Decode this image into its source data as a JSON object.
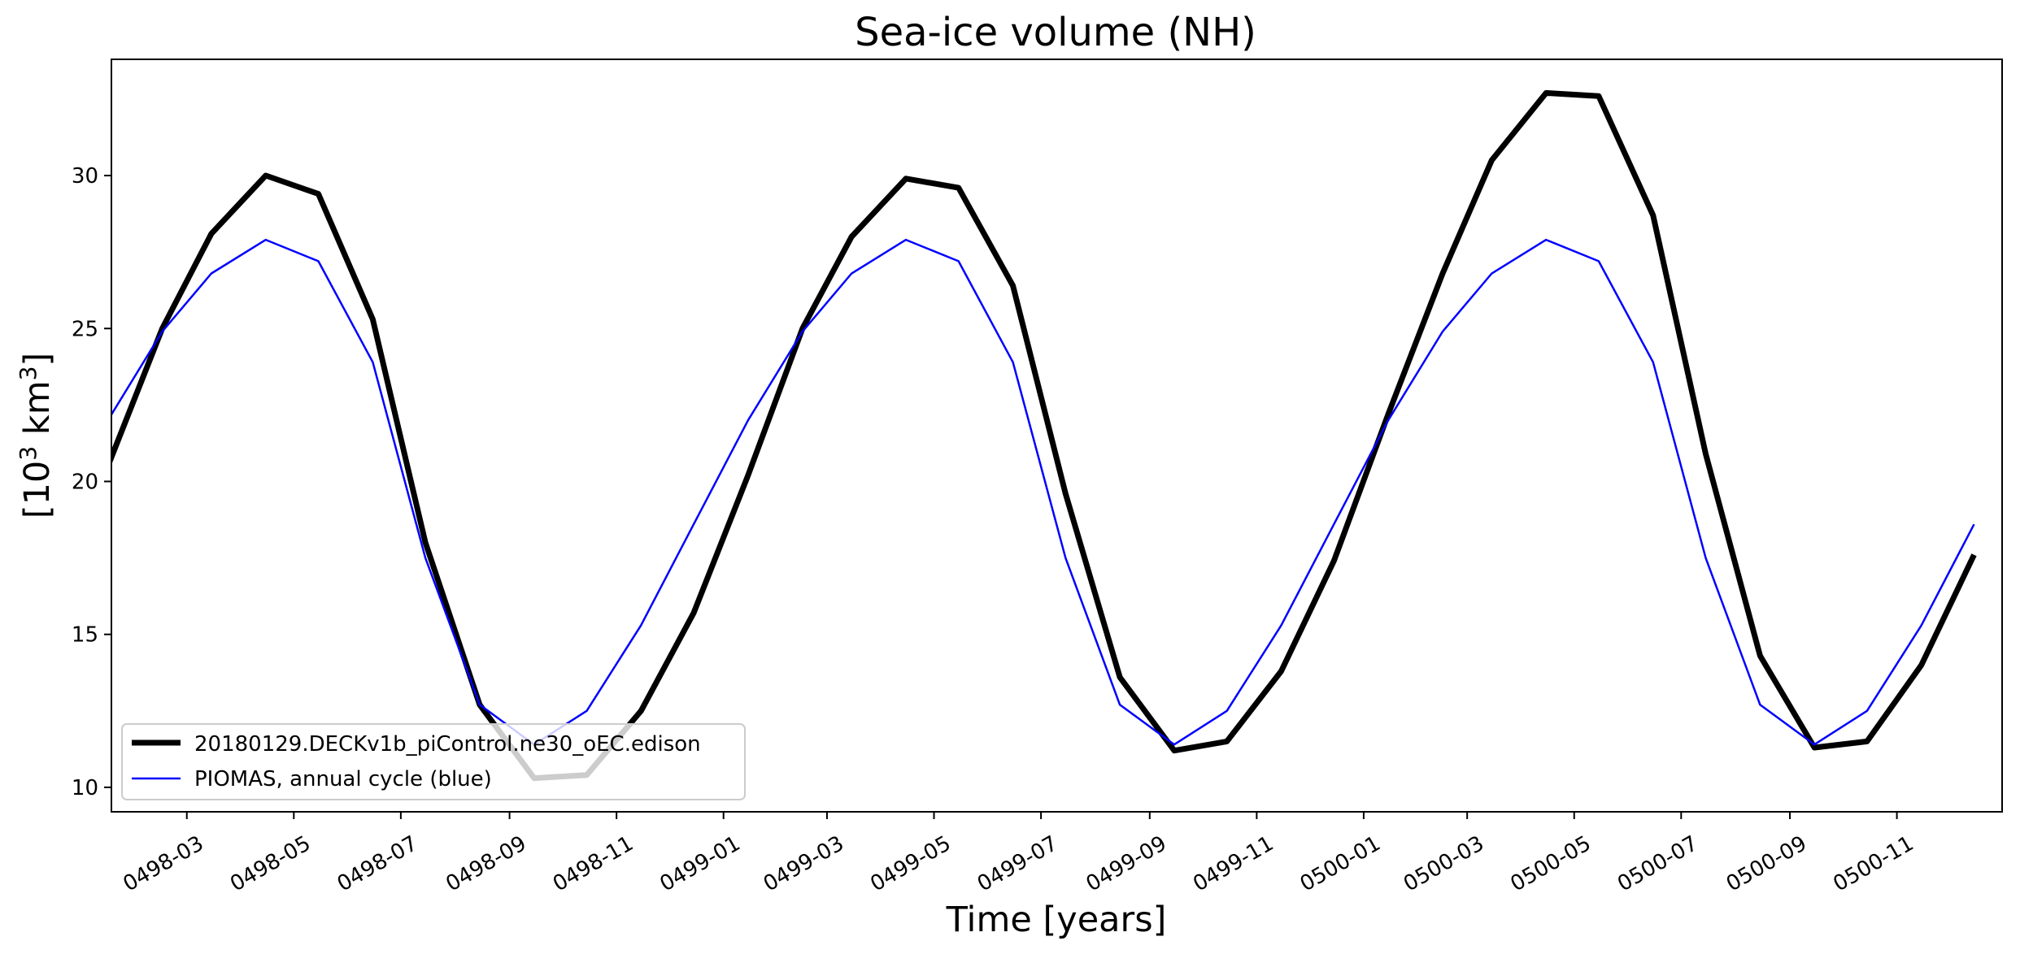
{
  "chart_data": {
    "type": "line",
    "title": "Sea-ice volume (NH)",
    "xlabel": "Time [years]",
    "ylabel": "[10³ km³]",
    "ylabel_parts": {
      "open": "[10",
      "exp1": "3",
      "mid": " km",
      "exp2": "3",
      "close": "]"
    },
    "ylim": [
      9.2,
      33.8
    ],
    "yticks": [
      10,
      15,
      20,
      25,
      30
    ],
    "xlim": [
      "0498-01-17",
      "0500-12-31"
    ],
    "xticks": [
      "0498-03",
      "0498-05",
      "0498-07",
      "0498-09",
      "0498-11",
      "0499-01",
      "0499-03",
      "0499-05",
      "0499-07",
      "0499-09",
      "0499-11",
      "0500-01",
      "0500-03",
      "0500-05",
      "0500-07",
      "0500-09",
      "0500-11"
    ],
    "x": [
      "0498-01-15",
      "0498-02-15",
      "0498-03-15",
      "0498-04-15",
      "0498-05-15",
      "0498-06-15",
      "0498-07-15",
      "0498-08-15",
      "0498-09-15",
      "0498-10-15",
      "0498-11-15",
      "0498-12-15",
      "0499-01-15",
      "0499-02-15",
      "0499-03-15",
      "0499-04-15",
      "0499-05-15",
      "0499-06-15",
      "0499-07-15",
      "0499-08-15",
      "0499-09-15",
      "0499-10-15",
      "0499-11-15",
      "0499-12-15",
      "0500-01-15",
      "0500-02-15",
      "0500-03-15",
      "0500-04-15",
      "0500-05-15",
      "0500-06-15",
      "0500-07-15",
      "0500-08-15",
      "0500-09-15",
      "0500-10-15",
      "0500-11-15",
      "0500-12-15"
    ],
    "series": [
      {
        "name": "20180129.DECKv1b_piControl.ne30_oEC.edison",
        "color": "#000000",
        "width": "thick",
        "values": [
          20.5,
          25.0,
          28.1,
          30.0,
          29.4,
          25.3,
          18.0,
          12.7,
          10.3,
          10.4,
          12.5,
          15.7,
          20.2,
          25.0,
          28.0,
          29.9,
          29.6,
          26.4,
          19.6,
          13.6,
          11.2,
          11.5,
          13.8,
          17.4,
          22.2,
          26.8,
          30.5,
          32.7,
          32.6,
          28.7,
          20.9,
          14.3,
          11.3,
          11.5,
          14.0,
          17.6
        ]
      },
      {
        "name": "PIOMAS, annual cycle (blue)",
        "color": "#0000ff",
        "width": "thin",
        "values": [
          22.0,
          24.9,
          26.8,
          27.9,
          27.2,
          23.9,
          17.5,
          12.7,
          11.4,
          12.5,
          15.3,
          18.6,
          22.0,
          24.9,
          26.8,
          27.9,
          27.2,
          23.9,
          17.5,
          12.7,
          11.4,
          12.5,
          15.3,
          18.6,
          22.0,
          24.9,
          26.8,
          27.9,
          27.2,
          23.9,
          17.5,
          12.7,
          11.4,
          12.5,
          15.3,
          18.6
        ]
      }
    ],
    "legend": {
      "placement": "lower-left"
    },
    "grid": false
  }
}
